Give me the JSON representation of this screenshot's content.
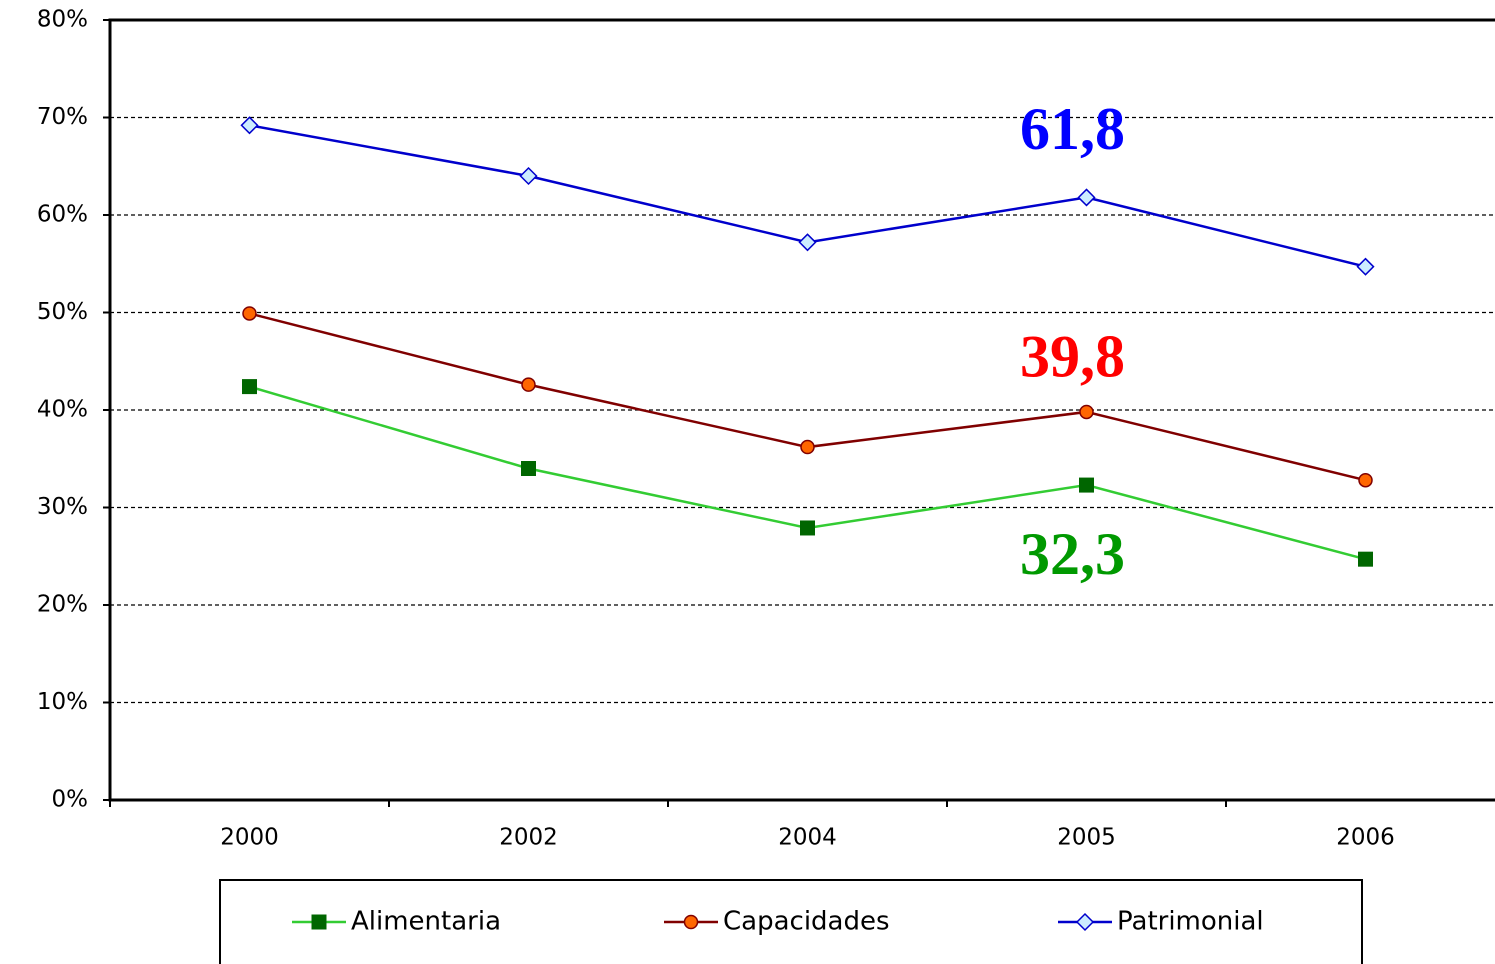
{
  "chart_data": {
    "type": "line",
    "categories": [
      "2000",
      "2002",
      "2004",
      "2005",
      "2006"
    ],
    "ylim": [
      0,
      80
    ],
    "yticks": [
      {
        "value": 0,
        "label": "0%"
      },
      {
        "value": 10,
        "label": "10%"
      },
      {
        "value": 20,
        "label": "20%"
      },
      {
        "value": 30,
        "label": "30%"
      },
      {
        "value": 40,
        "label": "40%"
      },
      {
        "value": 50,
        "label": "50%"
      },
      {
        "value": 60,
        "label": "60%"
      },
      {
        "value": 70,
        "label": "70%"
      },
      {
        "value": 80,
        "label": "80%"
      }
    ],
    "grid": true,
    "legend": "bottom",
    "series": [
      {
        "name": "Alimentaria",
        "color": "#33cc33",
        "marker": "square",
        "marker_color": "#006600",
        "values": [
          42.4,
          34.0,
          27.9,
          32.3,
          24.7
        ],
        "value_labels": [
          null,
          null,
          null,
          "32,3",
          null
        ],
        "label_color": "#009900"
      },
      {
        "name": "Capacidades",
        "color": "#800000",
        "marker": "circle",
        "marker_color": "#ff6600",
        "values": [
          49.9,
          42.6,
          36.2,
          39.8,
          32.8
        ],
        "value_labels": [
          null,
          null,
          null,
          "39,8",
          null
        ],
        "label_color": "#ff0000"
      },
      {
        "name": "Patrimonial",
        "color": "#0000cc",
        "marker": "diamond",
        "marker_color": "#ccecff",
        "values": [
          69.2,
          64.0,
          57.2,
          61.8,
          54.7
        ],
        "value_labels": [
          null,
          null,
          null,
          "61,8",
          null
        ],
        "label_color": "#0000ff"
      }
    ]
  }
}
